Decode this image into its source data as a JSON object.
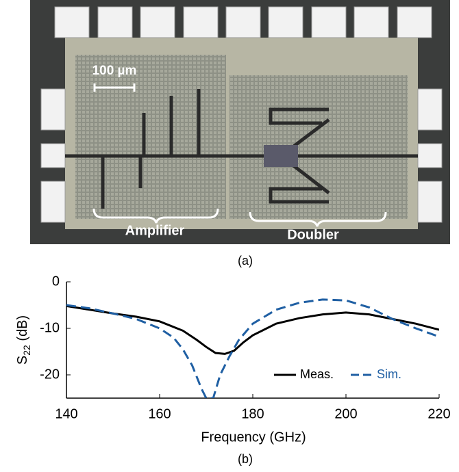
{
  "photo": {
    "scale_bar": "100 µm",
    "labels": [
      "Amplifier",
      "Doubler"
    ]
  },
  "captions": [
    "(a)",
    "(b)"
  ],
  "chart_data": {
    "type": "line",
    "xlabel": "Frequency (GHz)",
    "ylabel": [
      "S",
      "22",
      " (dB)"
    ],
    "xlim": [
      140,
      220
    ],
    "xticks": [
      140,
      160,
      180,
      200,
      220
    ],
    "ylim": [
      -25,
      0
    ],
    "yticks": [
      -20,
      -10,
      0
    ],
    "legend": "lower right",
    "series": [
      {
        "name": "Meas.",
        "color": "#000000",
        "dash": false,
        "x": [
          140,
          145,
          150,
          155,
          160,
          165,
          168,
          170,
          172,
          174,
          176,
          178,
          180,
          185,
          190,
          195,
          200,
          205,
          210,
          215,
          220
        ],
        "values": [
          -5.2,
          -6,
          -6.8,
          -7.5,
          -8.5,
          -10.5,
          -12.5,
          -14,
          -15.3,
          -15.5,
          -14.8,
          -13,
          -11.5,
          -9,
          -7.8,
          -7,
          -6.6,
          -7,
          -8,
          -9,
          -10.3
        ]
      },
      {
        "name": "Sim.",
        "color": "#1f5fa3",
        "dash": true,
        "x": [
          140,
          145,
          150,
          155,
          160,
          163,
          165,
          167,
          169,
          170,
          171.5,
          173,
          175,
          177,
          180,
          185,
          190,
          195,
          200,
          205,
          210,
          215,
          220
        ],
        "values": [
          -5,
          -5.7,
          -6.8,
          -8,
          -10,
          -12,
          -14.5,
          -18,
          -23,
          -25,
          -25,
          -20,
          -16,
          -12.5,
          -9,
          -6,
          -4.5,
          -3.8,
          -4,
          -5.5,
          -8,
          -10,
          -11.8
        ]
      }
    ]
  }
}
